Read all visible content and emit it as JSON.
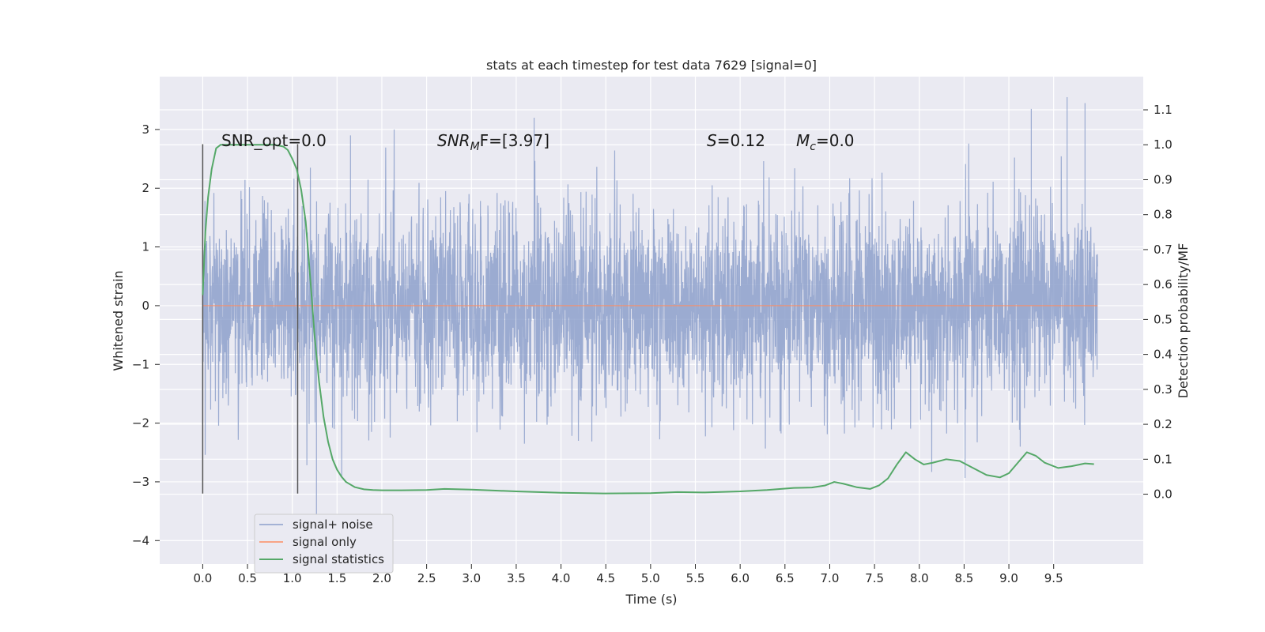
{
  "chart_data": {
    "type": "line",
    "title": "stats at each timestep for test data 7629 [signal=0]",
    "xlabel": "Time (s)",
    "ylabel": "Whitened strain",
    "y2label": "Detection probability/MF",
    "xlim": [
      -0.48,
      10.5
    ],
    "ylim": [
      -4.4,
      3.9
    ],
    "y2lim": [
      -0.2,
      1.195
    ],
    "xticks": [
      0.0,
      0.5,
      1.0,
      1.5,
      2.0,
      2.5,
      3.0,
      3.5,
      4.0,
      4.5,
      5.0,
      5.5,
      6.0,
      6.5,
      7.0,
      7.5,
      8.0,
      8.5,
      9.0,
      9.5
    ],
    "xtick_labels": [
      "0.0",
      "0.5",
      "1.0",
      "1.5",
      "2.0",
      "2.5",
      "3.0",
      "3.5",
      "4.0",
      "4.5",
      "5.0",
      "5.5",
      "6.0",
      "6.5",
      "7.0",
      "7.5",
      "8.0",
      "8.5",
      "9.0",
      "9.5"
    ],
    "yticks": [
      -4,
      -3,
      -2,
      -1,
      0,
      1,
      2,
      3
    ],
    "ytick_labels": [
      "−4",
      "−3",
      "−2",
      "−1",
      "0",
      "1",
      "2",
      "3"
    ],
    "y2ticks": [
      0.0,
      0.1,
      0.2,
      0.3,
      0.4,
      0.5,
      0.6,
      0.7,
      0.8,
      0.9,
      1.0,
      1.1
    ],
    "y2tick_labels": [
      "0.0",
      "0.1",
      "0.2",
      "0.3",
      "0.4",
      "0.5",
      "0.6",
      "0.7",
      "0.8",
      "0.9",
      "1.0",
      "1.1"
    ],
    "grid": true,
    "legend_position": "lower-left",
    "annotations": {
      "snr_opt": "SNR_opt=0.0",
      "snr_mf_main": "SNR",
      "snr_mf_sub": "M",
      "snr_mf_rest": "F=[3.97]",
      "s_main": "S",
      "s_rest": "=0.12",
      "mc_main": "M",
      "mc_sub": "c",
      "mc_rest": "=0.0"
    },
    "vlines": [
      {
        "x": 0.0,
        "y_range": [
          -3.2,
          2.75
        ]
      },
      {
        "x": 1.06,
        "y_range": [
          -3.2,
          2.75
        ]
      }
    ],
    "series": [
      {
        "name": "signal+ noise",
        "color": "#8da0cb",
        "style": "dense noise, range approx -3.8 to 3.55",
        "t_range": [
          0.0,
          9.99
        ],
        "peak_markers": [
          {
            "x": 1.27,
            "y": -3.55
          },
          {
            "x": 1.65,
            "y": 2.9
          },
          {
            "x": 3.7,
            "y": 3.2
          },
          {
            "x": 9.25,
            "y": 3.35
          },
          {
            "x": 9.65,
            "y": 3.55
          },
          {
            "x": 9.85,
            "y": 3.45
          }
        ]
      },
      {
        "name": "signal only",
        "color": "#fc8d62",
        "x": [
          0.0,
          9.99
        ],
        "y": [
          0.0,
          0.0
        ]
      },
      {
        "name": "signal statistics",
        "color": "#55a868",
        "axis": "right",
        "x": [
          0.0,
          0.03,
          0.06,
          0.1,
          0.15,
          0.2,
          0.3,
          0.4,
          0.6,
          0.8,
          0.9,
          0.95,
          1.0,
          1.05,
          1.1,
          1.15,
          1.2,
          1.25,
          1.3,
          1.35,
          1.4,
          1.45,
          1.5,
          1.55,
          1.6,
          1.7,
          1.8,
          1.9,
          2.0,
          2.2,
          2.5,
          2.7,
          3.0,
          3.5,
          4.0,
          4.5,
          5.0,
          5.3,
          5.6,
          6.0,
          6.3,
          6.6,
          6.8,
          6.95,
          7.05,
          7.15,
          7.3,
          7.45,
          7.55,
          7.65,
          7.75,
          7.85,
          7.95,
          8.05,
          8.15,
          8.3,
          8.45,
          8.6,
          8.75,
          8.9,
          9.0,
          9.1,
          9.2,
          9.3,
          9.4,
          9.55,
          9.7,
          9.85,
          9.95
        ],
        "y": [
          0.57,
          0.75,
          0.85,
          0.93,
          0.99,
          1.0,
          1.0,
          1.0,
          1.0,
          1.0,
          0.995,
          0.985,
          0.96,
          0.93,
          0.87,
          0.78,
          0.62,
          0.45,
          0.32,
          0.22,
          0.15,
          0.1,
          0.07,
          0.05,
          0.035,
          0.02,
          0.014,
          0.012,
          0.011,
          0.011,
          0.012,
          0.015,
          0.013,
          0.008,
          0.004,
          0.002,
          0.003,
          0.006,
          0.005,
          0.008,
          0.012,
          0.018,
          0.019,
          0.025,
          0.035,
          0.03,
          0.02,
          0.015,
          0.025,
          0.045,
          0.085,
          0.12,
          0.1,
          0.085,
          0.09,
          0.1,
          0.095,
          0.075,
          0.055,
          0.048,
          0.06,
          0.09,
          0.12,
          0.11,
          0.09,
          0.075,
          0.08,
          0.088,
          0.086
        ]
      }
    ]
  }
}
